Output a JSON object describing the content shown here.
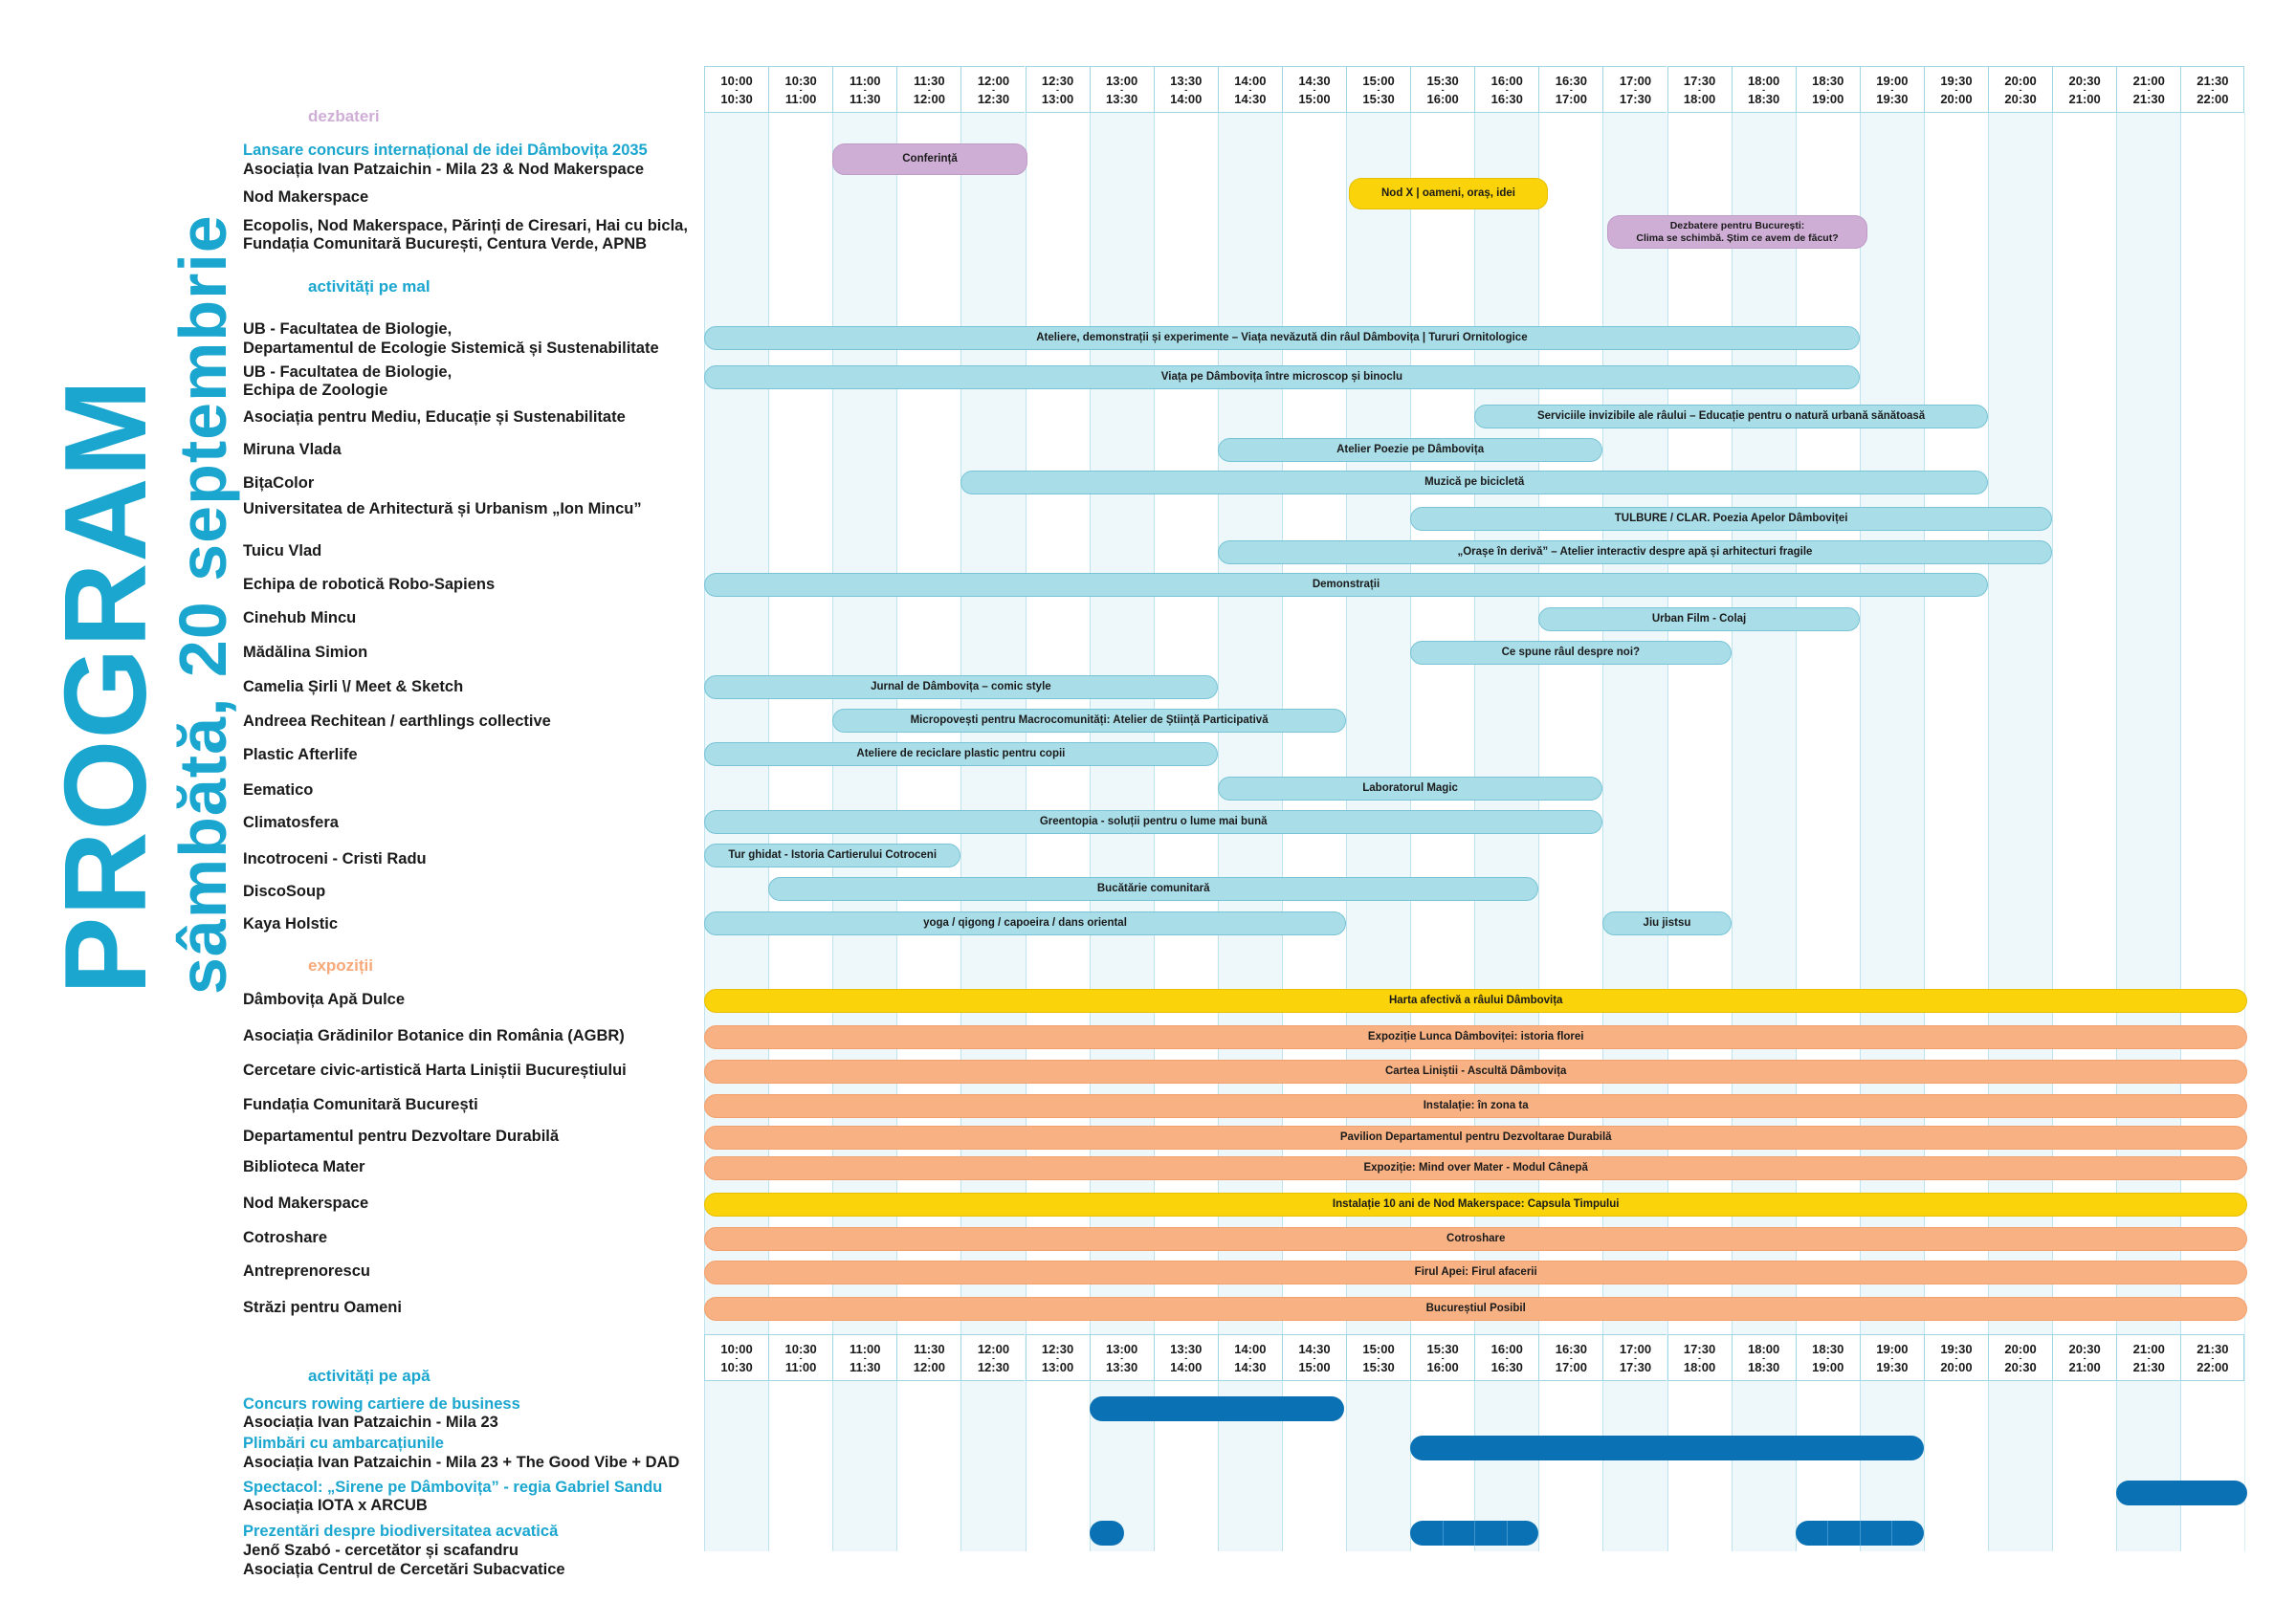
{
  "title": {
    "main": "PROGRAM",
    "date": "sâmbătă, 20 septembrie"
  },
  "colors": {
    "cyan": "#1aa6cf",
    "purple": "#cfaed6",
    "yellow": "#fbd30a",
    "light_blue": "#a9dde8",
    "orange": "#f7b183",
    "dark_blue": "#0a72b4"
  },
  "time_slots": [
    {
      "start": "10:00",
      "end": "10:30"
    },
    {
      "start": "10:30",
      "end": "11:00"
    },
    {
      "start": "11:00",
      "end": "11:30"
    },
    {
      "start": "11:30",
      "end": "12:00"
    },
    {
      "start": "12:00",
      "end": "12:30"
    },
    {
      "start": "12:30",
      "end": "13:00"
    },
    {
      "start": "13:00",
      "end": "13:30"
    },
    {
      "start": "13:30",
      "end": "14:00"
    },
    {
      "start": "14:00",
      "end": "14:30"
    },
    {
      "start": "14:30",
      "end": "15:00"
    },
    {
      "start": "15:00",
      "end": "15:30"
    },
    {
      "start": "15:30",
      "end": "16:00"
    },
    {
      "start": "16:00",
      "end": "16:30"
    },
    {
      "start": "16:30",
      "end": "17:00"
    },
    {
      "start": "17:00",
      "end": "17:30"
    },
    {
      "start": "17:30",
      "end": "18:00"
    },
    {
      "start": "18:00",
      "end": "18:30"
    },
    {
      "start": "18:30",
      "end": "19:00"
    },
    {
      "start": "19:00",
      "end": "19:30"
    },
    {
      "start": "19:30",
      "end": "20:00"
    },
    {
      "start": "20:00",
      "end": "20:30"
    },
    {
      "start": "20:30",
      "end": "21:00"
    },
    {
      "start": "21:00",
      "end": "21:30"
    },
    {
      "start": "21:30",
      "end": "22:00"
    }
  ],
  "sections": {
    "dezbateri": "dezbateri",
    "mal": "activități pe mal",
    "expozitii": "expoziții",
    "apa": "activități pe apă"
  },
  "dezbateri": {
    "labels": [
      {
        "title": "Lansare concurs internațional de idei Dâmbovița 2035",
        "org": "Asociația Ivan Patzaichin - Mila 23 & Nod Makerspace"
      },
      {
        "org": "Nod Makerspace"
      },
      {
        "org": "Ecopolis, Nod Makerspace, Părinți de Ciresari, Hai cu bicla,",
        "org2": "Fundația Comunitară București, Centura Verde, APNB"
      }
    ],
    "events": [
      {
        "text": "Conferință",
        "start": "11:00",
        "end": "12:30"
      },
      {
        "text": "Nod X | oameni, oraș, idei",
        "start": "15:00",
        "end": "16:30"
      },
      {
        "text": "Dezbatere pentru București:",
        "text2": "Clima se schimbă. Știm ce avem de făcut?",
        "start": "17:00",
        "end": "19:00"
      }
    ]
  },
  "mal": [
    {
      "org": "UB - Facultatea de Biologie,",
      "org2": "Departamentul de Ecologie Sistemică și Sustenabilitate",
      "event": "Ateliere, demonstrații și experimente – Viața nevăzută din râul Dâmbovița | Tururi Ornitologice",
      "start": "10:00",
      "end": "19:00"
    },
    {
      "org": "UB -  Facultatea de Biologie,",
      "org2": "Echipa de Zoologie",
      "event": "Viața pe Dâmbovița între microscop și binoclu",
      "start": "10:00",
      "end": "19:00"
    },
    {
      "org": "Asociația pentru Mediu, Educație și Sustenabilitate",
      "event": "Serviciile invizibile ale râului – Educație pentru o natură urbană sănătoasă",
      "start": "16:00",
      "end": "20:00"
    },
    {
      "org": "Miruna Vlada",
      "event": "Atelier Poezie pe Dâmbovița",
      "start": "14:00",
      "end": "17:00"
    },
    {
      "org": "BițaColor",
      "event": "Muzică pe bicicletă",
      "start": "12:00",
      "end": "20:00"
    },
    {
      "org": "Universitatea de Arhitectură și Urbanism „Ion Mincu”",
      "event": "TULBURE / CLAR. Poezia Apelor Dâmboviței",
      "start": "15:30",
      "end": "20:30"
    },
    {
      "org": "Tuicu Vlad",
      "event": "„Orașe în derivă” – Atelier interactiv despre apă și arhitecturi fragile",
      "start": "14:00",
      "end": "20:30"
    },
    {
      "org": "Echipa de robotică Robo-Sapiens",
      "event": "Demonstrații",
      "start": "10:00",
      "end": "20:00"
    },
    {
      "org": "Cinehub Mincu",
      "event": "Urban Film - Colaj",
      "start": "16:30",
      "end": "19:00"
    },
    {
      "org": "Mădălina Simion",
      "event": "Ce spune râul despre noi?",
      "start": "15:30",
      "end": "18:00"
    },
    {
      "org": "Camelia Șirli \\/ Meet & Sketch",
      "event": "Jurnal de Dâmbovița – comic style",
      "start": "10:00",
      "end": "14:00"
    },
    {
      "org": "Andreea Rechitean / earthlings collective",
      "event": "Micropovești pentru Macrocomunități: Atelier de Știință Participativă",
      "start": "11:00",
      "end": "15:00"
    },
    {
      "org": "Plastic Afterlife",
      "event": "Ateliere de reciclare plastic pentru copii",
      "start": "10:00",
      "end": "14:00"
    },
    {
      "org": "Eematico",
      "event": "Laboratorul Magic",
      "start": "14:00",
      "end": "17:00"
    },
    {
      "org": "Climatosfera",
      "event": "Greentopia - soluții pentru o lume mai bună",
      "start": "10:00",
      "end": "17:00"
    },
    {
      "org": "Incotroceni - Cristi Radu",
      "event": "Tur ghidat - Istoria Cartierului Cotroceni",
      "start": "10:00",
      "end": "12:00"
    },
    {
      "org": "DiscoSoup",
      "event": "Bucătărie comunitară",
      "start": "10:30",
      "end": "16:30"
    },
    {
      "org": "Kaya Holstic",
      "event": "yoga / qigong / capoeira / dans oriental",
      "start": "10:00",
      "end": "15:00",
      "event2": "Jiu jistsu",
      "start2": "17:00",
      "end2": "18:00"
    }
  ],
  "expozitii": [
    {
      "org": "Dâmbovița Apă Dulce",
      "event": "Harta afectivă a râului Dâmbovița",
      "color": "yellow"
    },
    {
      "org": "Asociația Grădinilor Botanice din România (AGBR)",
      "event": "Expoziție Lunca Dâmboviței: istoria florei",
      "color": "orange"
    },
    {
      "org": "Cercetare civic-artistică Harta Liniștii Bucureștiului",
      "event": "Cartea Liniștii - Ascultă Dâmbovița",
      "color": "orange"
    },
    {
      "org": "Fundația Comunitară București",
      "event": "Instalație: în zona ta",
      "color": "orange"
    },
    {
      "org": "Departamentul pentru Dezvoltare Durabilă",
      "event": "Pavilion Departamentul pentru Dezvoltarae Durabilă",
      "color": "orange"
    },
    {
      "org": "Biblioteca Mater",
      "event": "Expoziție: Mind over Mater - Modul Cânepă",
      "color": "orange"
    },
    {
      "org": "Nod Makerspace",
      "event": "Instalație 10 ani de Nod Makerspace: Capsula Timpului",
      "color": "yellow"
    },
    {
      "org": "Cotroshare",
      "event": "Cotroshare",
      "color": "orange"
    },
    {
      "org": "Antreprenorescu",
      "event": "Firul Apei: Firul afacerii",
      "color": "orange"
    },
    {
      "org": "Străzi pentru Oameni",
      "event": "Bucureștiul Posibil",
      "color": "orange"
    }
  ],
  "apa": [
    {
      "title": "Concurs rowing cartiere de business",
      "org": "Asociația Ivan Patzaichin - Mila 23",
      "start": "13:00",
      "end": "15:00"
    },
    {
      "title": "Plimbări cu ambarcațiunile",
      "org": "Asociația Ivan Patzaichin - Mila 23 + The Good Vibe + DAD",
      "start": "15:30",
      "end": "19:30"
    },
    {
      "title": "Spectacol: „Sirene pe Dâmbovița” - regia Gabriel Sandu",
      "org": "Asociația IOTA x ARCUB",
      "start": "21:00",
      "end": "22:00"
    },
    {
      "title": "Prezentări despre biodiversitatea acvatică",
      "org": "Jenő Szabó - cercetător și scafandru",
      "org2": "Asociația Centrul de Cercetări Subacvatice"
    }
  ]
}
